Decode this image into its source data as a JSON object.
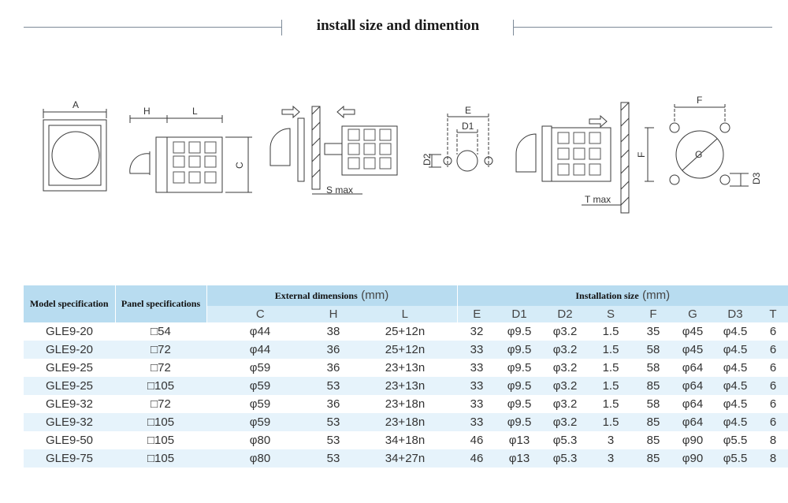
{
  "header": {
    "title": "install size and dimention"
  },
  "diagram_labels": {
    "a": "A",
    "h": "H",
    "l": "L",
    "c": "C",
    "smax": "S max",
    "e": "E",
    "d1": "D1",
    "d2": "D2",
    "tmax": "T max",
    "f_top": "F",
    "f_side": "F",
    "g": "G",
    "d3": "D3"
  },
  "table": {
    "model_spec": "Model specification",
    "panel_spec": "Panel specifications",
    "ext_dims": "External dimensions",
    "ext_unit": "(mm)",
    "inst_size": "Installation size",
    "inst_unit": "(mm)",
    "columns": [
      "C",
      "H",
      "L",
      "E",
      "D1",
      "D2",
      "S",
      "F",
      "G",
      "D3",
      "T"
    ],
    "rows": [
      {
        "model": "GLE9-20",
        "panel": "□54",
        "C": "φ44",
        "H": "38",
        "L": "25+12n",
        "E": "32",
        "D1": "φ9.5",
        "D2": "φ3.2",
        "S": "1.5",
        "F": "35",
        "G": "φ45",
        "D3": "φ4.5",
        "T": "6"
      },
      {
        "model": "GLE9-20",
        "panel": "□72",
        "C": "φ44",
        "H": "36",
        "L": "25+12n",
        "E": "33",
        "D1": "φ9.5",
        "D2": "φ3.2",
        "S": "1.5",
        "F": "58",
        "G": "φ45",
        "D3": "φ4.5",
        "T": "6"
      },
      {
        "model": "GLE9-25",
        "panel": "□72",
        "C": "φ59",
        "H": "36",
        "L": "23+13n",
        "E": "33",
        "D1": "φ9.5",
        "D2": "φ3.2",
        "S": "1.5",
        "F": "58",
        "G": "φ64",
        "D3": "φ4.5",
        "T": "6"
      },
      {
        "model": "GLE9-25",
        "panel": "□105",
        "C": "φ59",
        "H": "53",
        "L": "23+13n",
        "E": "33",
        "D1": "φ9.5",
        "D2": "φ3.2",
        "S": "1.5",
        "F": "85",
        "G": "φ64",
        "D3": "φ4.5",
        "T": "6"
      },
      {
        "model": "GLE9-32",
        "panel": "□72",
        "C": "φ59",
        "H": "36",
        "L": "23+18n",
        "E": "33",
        "D1": "φ9.5",
        "D2": "φ3.2",
        "S": "1.5",
        "F": "58",
        "G": "φ64",
        "D3": "φ4.5",
        "T": "6"
      },
      {
        "model": "GLE9-32",
        "panel": "□105",
        "C": "φ59",
        "H": "53",
        "L": "23+18n",
        "E": "33",
        "D1": "φ9.5",
        "D2": "φ3.2",
        "S": "1.5",
        "F": "85",
        "G": "φ64",
        "D3": "φ4.5",
        "T": "6"
      },
      {
        "model": "GLE9-50",
        "panel": "□105",
        "C": "φ80",
        "H": "53",
        "L": "34+18n",
        "E": "46",
        "D1": "φ13",
        "D2": "φ5.3",
        "S": "3",
        "F": "85",
        "G": "φ90",
        "D3": "φ5.5",
        "T": "8"
      },
      {
        "model": "GLE9-75",
        "panel": "□105",
        "C": "φ80",
        "H": "53",
        "L": "34+27n",
        "E": "46",
        "D1": "φ13",
        "D2": "φ5.3",
        "S": "3",
        "F": "85",
        "G": "φ90",
        "D3": "φ5.5",
        "T": "8"
      }
    ]
  }
}
